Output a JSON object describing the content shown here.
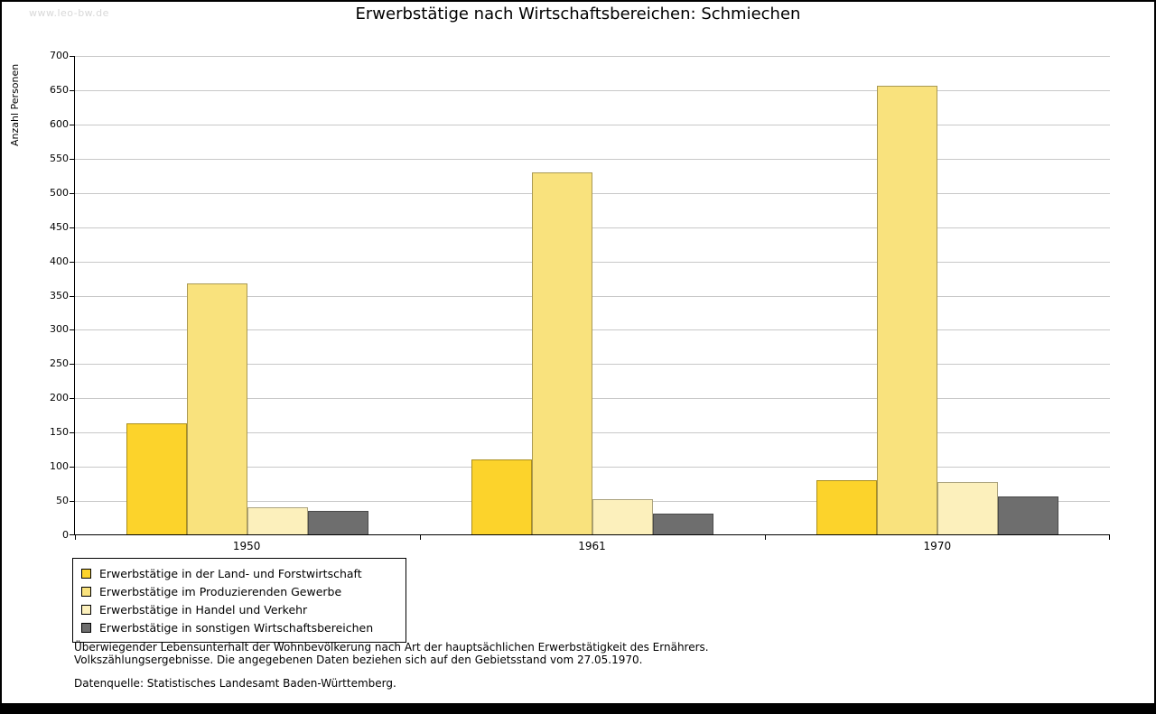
{
  "watermark": "www.leo-bw.de",
  "title": "Erwerbstätige nach Wirtschaftsbereichen: Schmiechen",
  "chart_data": {
    "type": "bar",
    "categories": [
      "1950",
      "1961",
      "1970"
    ],
    "series": [
      {
        "name": "Erwerbstätige in der Land- und Forstwirtschaft",
        "color": "#FCD32B",
        "values": [
          162,
          110,
          79
        ]
      },
      {
        "name": "Erwerbstätige im Produzierenden Gewerbe",
        "color": "#F9E27D",
        "values": [
          367,
          530,
          657
        ]
      },
      {
        "name": "Erwerbstätige in Handel und Verkehr",
        "color": "#FCF0BC",
        "values": [
          40,
          51,
          77
        ]
      },
      {
        "name": "Erwerbstätige in sonstigen Wirtschaftsbereichen",
        "color": "#6E6E6E",
        "values": [
          34,
          31,
          56
        ]
      }
    ],
    "title": "Erwerbstätige nach Wirtschaftsbereichen: Schmiechen",
    "xlabel": "",
    "ylabel": "Anzahl Personen",
    "ylim": [
      0,
      700
    ],
    "ytick_step": 50,
    "grid": true,
    "legend_position": "bottom-left"
  },
  "footnotes": {
    "line1": "Überwiegender Lebensunterhalt der Wohnbevölkerung nach Art der hauptsächlichen Erwerbstätigkeit des Ernährers.",
    "line2": "Volkszählungsergebnisse. Die angegebenen Daten beziehen sich auf den Gebietsstand vom 27.05.1970.",
    "source": "Datenquelle: Statistisches Landesamt Baden-Württemberg."
  }
}
